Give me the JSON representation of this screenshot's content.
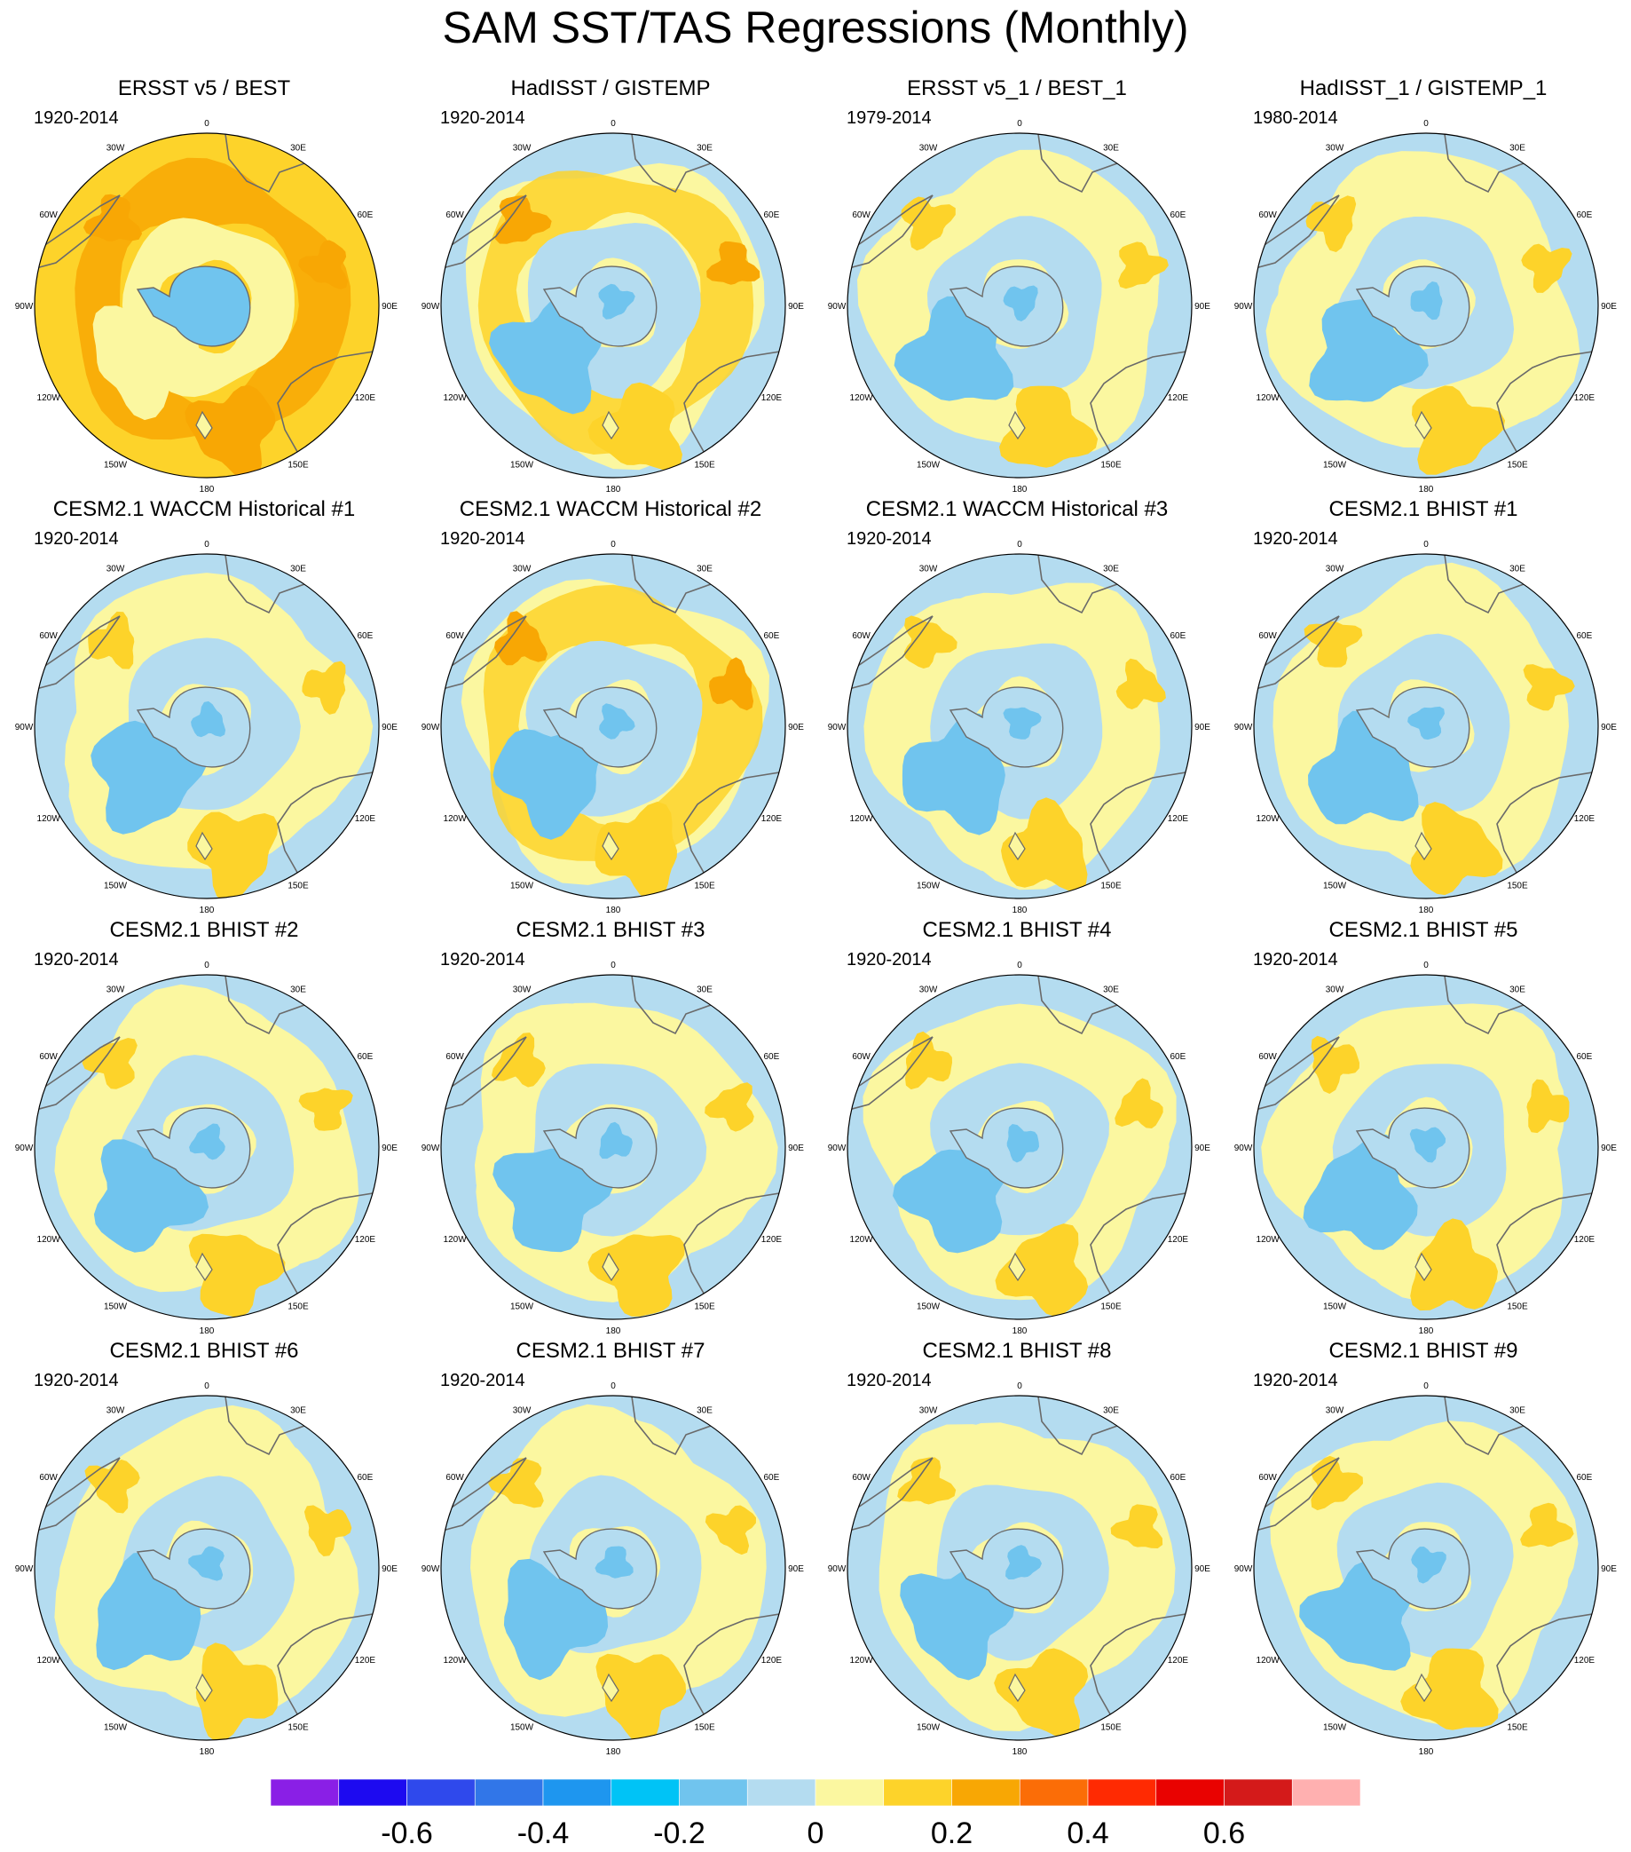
{
  "figure": {
    "title": "SAM SST/TAS Regressions (Monthly)"
  },
  "longitude_labels": [
    "0",
    "30E",
    "60E",
    "90E",
    "120E",
    "150E",
    "180",
    "150W",
    "120W",
    "90W",
    "60W",
    "30W"
  ],
  "panels": [
    {
      "title": "ERSST v5 / BEST",
      "period": "1920-2014",
      "warmth": 2
    },
    {
      "title": "HadISST / GISTEMP",
      "period": "1920-2014",
      "warmth": 1
    },
    {
      "title": "ERSST v5_1 / BEST_1",
      "period": "1979-2014",
      "warmth": 0
    },
    {
      "title": "HadISST_1 / GISTEMP_1",
      "period": "1980-2014",
      "warmth": 0
    },
    {
      "title": "CESM2.1 WACCM Historical #1",
      "period": "1920-2014",
      "warmth": 0
    },
    {
      "title": "CESM2.1 WACCM Historical #2",
      "period": "1920-2014",
      "warmth": 1
    },
    {
      "title": "CESM2.1 WACCM Historical #3",
      "period": "1920-2014",
      "warmth": 0
    },
    {
      "title": "CESM2.1 BHIST #1",
      "period": "1920-2014",
      "warmth": 0
    },
    {
      "title": "CESM2.1 BHIST #2",
      "period": "1920-2014",
      "warmth": 0
    },
    {
      "title": "CESM2.1 BHIST #3",
      "period": "1920-2014",
      "warmth": 0
    },
    {
      "title": "CESM2.1 BHIST #4",
      "period": "1920-2014",
      "warmth": 0
    },
    {
      "title": "CESM2.1 BHIST #5",
      "period": "1920-2014",
      "warmth": 0
    },
    {
      "title": "CESM2.1 BHIST #6",
      "period": "1920-2014",
      "warmth": 0
    },
    {
      "title": "CESM2.1 BHIST #7",
      "period": "1920-2014",
      "warmth": 0
    },
    {
      "title": "CESM2.1 BHIST #8",
      "period": "1920-2014",
      "warmth": 0
    },
    {
      "title": "CESM2.1 BHIST #9",
      "period": "1920-2014",
      "warmth": 0
    }
  ],
  "colors": {
    "land_outline": "#6a6a6a",
    "coast": "#9aa0a8",
    "neg_weak": "#b4dcf0",
    "neg_mod": "#70c4ee",
    "pos_weak": "#fbf7a0",
    "pos_mod": "#fdd32a",
    "pos_strong": "#f8a704"
  },
  "colorbar": {
    "colors": [
      "#8a1fe6",
      "#1d0af0",
      "#2f49ec",
      "#3176e8",
      "#1e96ef",
      "#00c3f6",
      "#70c4ee",
      "#b4dcf0",
      "#fbf7a0",
      "#fdd32a",
      "#f8a704",
      "#fb6d07",
      "#ff2a02",
      "#e90201",
      "#d41a1a",
      "#ffb0b0"
    ],
    "tick_labels": [
      "-0.6",
      "-0.4",
      "-0.2",
      "0",
      "0.2",
      "0.4",
      "0.6"
    ]
  }
}
